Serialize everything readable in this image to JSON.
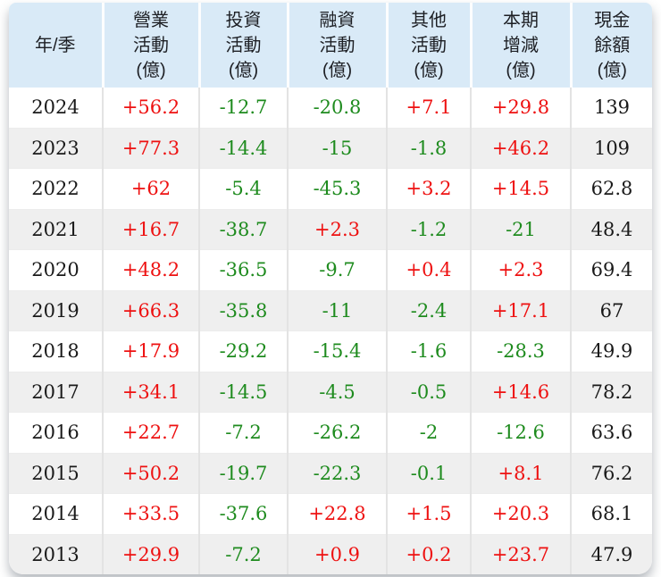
{
  "table": {
    "columns": [
      {
        "label": "年/季"
      },
      {
        "label": "營業\n活動\n(億)"
      },
      {
        "label": "投資\n活動\n(億)"
      },
      {
        "label": "融資\n活動\n(億)"
      },
      {
        "label": "其他\n活動\n(億)"
      },
      {
        "label": "本期\n增減\n(億)"
      },
      {
        "label": "現金\n餘額\n(億)"
      }
    ]
  },
  "colors": {
    "positive": "#ee1111",
    "negative": "#1e8b1e",
    "header_bg": "#d9eaf7",
    "row_alt_bg": "#efefef",
    "text": "#1a1a1a"
  },
  "chart_data": {
    "type": "table",
    "title": "",
    "columns": [
      "年/季",
      "營業活動(億)",
      "投資活動(億)",
      "融資活動(億)",
      "其他活動(億)",
      "本期增減(億)",
      "現金餘額(億)"
    ],
    "rows": [
      [
        "2024",
        "+56.2",
        "-12.7",
        "-20.8",
        "+7.1",
        "+29.8",
        "139"
      ],
      [
        "2023",
        "+77.3",
        "-14.4",
        "-15",
        "-1.8",
        "+46.2",
        "109"
      ],
      [
        "2022",
        "+62",
        "-5.4",
        "-45.3",
        "+3.2",
        "+14.5",
        "62.8"
      ],
      [
        "2021",
        "+16.7",
        "-38.7",
        "+2.3",
        "-1.2",
        "-21",
        "48.4"
      ],
      [
        "2020",
        "+48.2",
        "-36.5",
        "-9.7",
        "+0.4",
        "+2.3",
        "69.4"
      ],
      [
        "2019",
        "+66.3",
        "-35.8",
        "-11",
        "-2.4",
        "+17.1",
        "67"
      ],
      [
        "2018",
        "+17.9",
        "-29.2",
        "-15.4",
        "-1.6",
        "-28.3",
        "49.9"
      ],
      [
        "2017",
        "+34.1",
        "-14.5",
        "-4.5",
        "-0.5",
        "+14.6",
        "78.2"
      ],
      [
        "2016",
        "+22.7",
        "-7.2",
        "-26.2",
        "-2",
        "-12.6",
        "63.6"
      ],
      [
        "2015",
        "+50.2",
        "-19.7",
        "-22.3",
        "-0.1",
        "+8.1",
        "76.2"
      ],
      [
        "2014",
        "+33.5",
        "-37.6",
        "+22.8",
        "+1.5",
        "+20.3",
        "68.1"
      ],
      [
        "2013",
        "+29.9",
        "-7.2",
        "+0.9",
        "+0.2",
        "+23.7",
        "47.9"
      ]
    ]
  }
}
